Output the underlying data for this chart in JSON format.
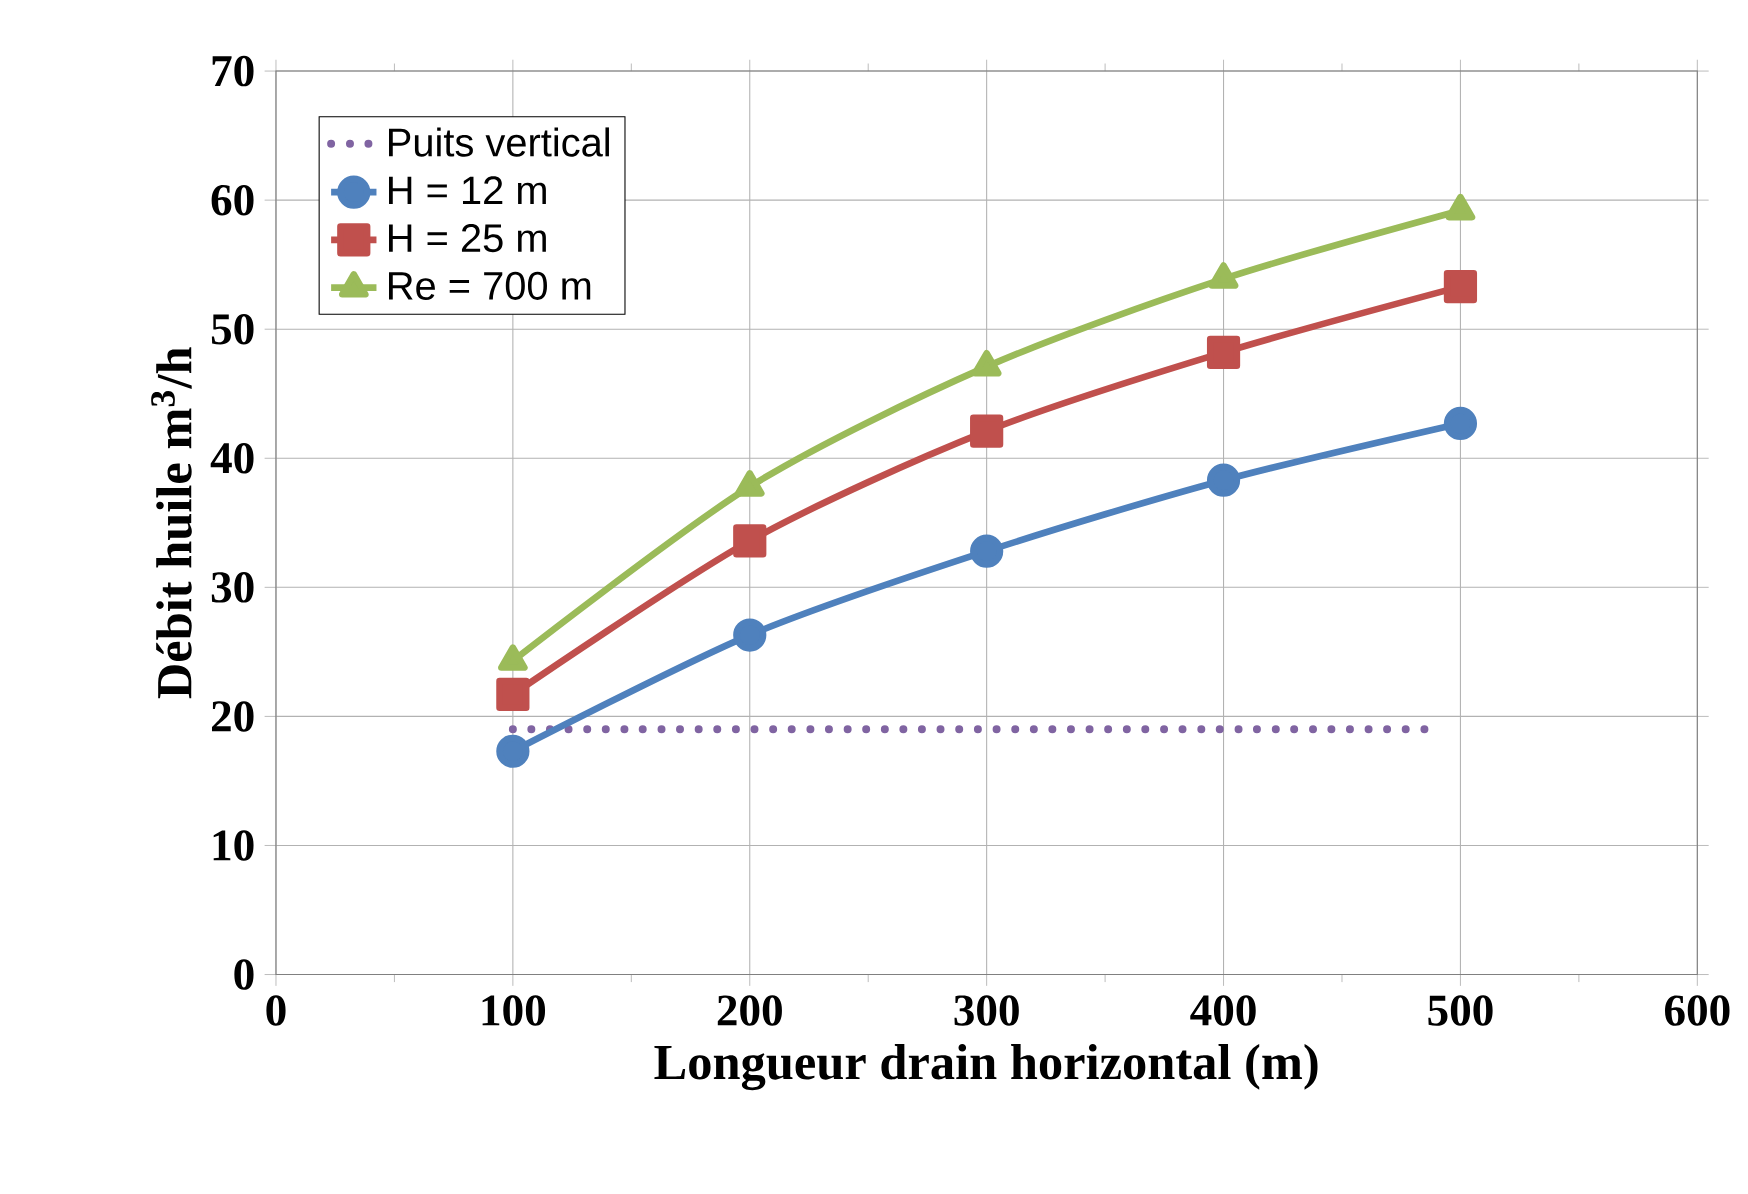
{
  "chart_data": {
    "type": "line",
    "xlabel": "Longueur drain horizontal (m)",
    "ylabel": "Débit huile m$^{3}$/h",
    "xlim": [
      0,
      600
    ],
    "ylim": [
      0,
      70
    ],
    "xticks": [
      0,
      100,
      200,
      300,
      400,
      500,
      600
    ],
    "yticks": [
      0,
      10,
      20,
      30,
      40,
      50,
      60,
      70
    ],
    "grid": true,
    "legend": "top left",
    "series": [
      {
        "name": "Puits vertical",
        "color": "#8064a2",
        "x": [
          100,
          490
        ],
        "values": [
          19,
          19
        ],
        "marker": "none",
        "line_style": "dotted"
      },
      {
        "name": "H = 12 m",
        "color": "#4f81bd",
        "x": [
          100,
          200,
          300,
          400,
          500
        ],
        "values": [
          17.3,
          26.3,
          32.8,
          38.3,
          42.7
        ],
        "marker": "circle"
      },
      {
        "name": "H = 25 m",
        "color": "#c0504d",
        "x": [
          100,
          200,
          300,
          400,
          500
        ],
        "values": [
          21.7,
          33.6,
          42.1,
          48.2,
          53.3
        ],
        "marker": "square"
      },
      {
        "name": "Re = 700 m",
        "color": "#9bbb59",
        "x": [
          100,
          200,
          300,
          400,
          500
        ],
        "values": [
          24.3,
          37.8,
          47.1,
          53.9,
          59.2
        ],
        "marker": "triangle"
      }
    ]
  }
}
